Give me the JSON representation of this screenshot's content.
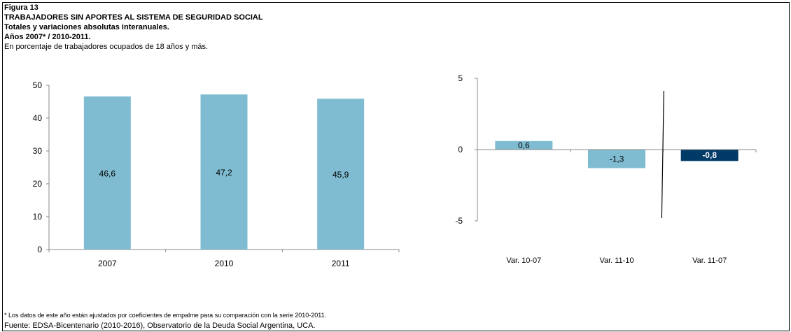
{
  "header": {
    "figure": "Figura 13",
    "title": "TRABAJADORES SIN APORTES AL SISTEMA DE SEGURIDAD SOCIAL",
    "subtitle1": "Totales y variaciones absolutas interanuales.",
    "subtitle2": "Años 2007* / 2010-2011.",
    "units": "En porcentaje de trabajadores ocupados de 18 años y más."
  },
  "footer": {
    "note": "* Los datos de este año están ajustados por coeficientes de empalme para su comparación con la serie 2010-2011.",
    "source": "Fuente: EDSA-Bicentenario (2010-2016), Observatorio de la Deuda Social Argentina, UCA."
  },
  "colors": {
    "bar": "#7fbcd1",
    "highlight": "#003a66"
  },
  "chart_data": [
    {
      "type": "bar",
      "categories": [
        "2007",
        "2010",
        "2011"
      ],
      "values": [
        46.6,
        47.2,
        45.9
      ],
      "value_labels": [
        "46,6",
        "47,2",
        "45,9"
      ],
      "ylim": [
        0,
        50
      ],
      "yticks": [
        0,
        10,
        20,
        30,
        40,
        50
      ],
      "ytick_labels": [
        "0",
        "10",
        "20",
        "30",
        "40",
        "50"
      ],
      "grid": false
    },
    {
      "type": "bar",
      "categories": [
        "Var. 10-07",
        "Var. 11-10",
        "Var. 11-07"
      ],
      "values": [
        0.6,
        -1.3,
        -0.8
      ],
      "value_labels": [
        "0,6",
        "-1,3",
        "-0,8"
      ],
      "ylim": [
        -5,
        5
      ],
      "yticks": [
        -5,
        0,
        5
      ],
      "ytick_labels": [
        "-5",
        "0",
        "5"
      ],
      "grid": false
    }
  ]
}
